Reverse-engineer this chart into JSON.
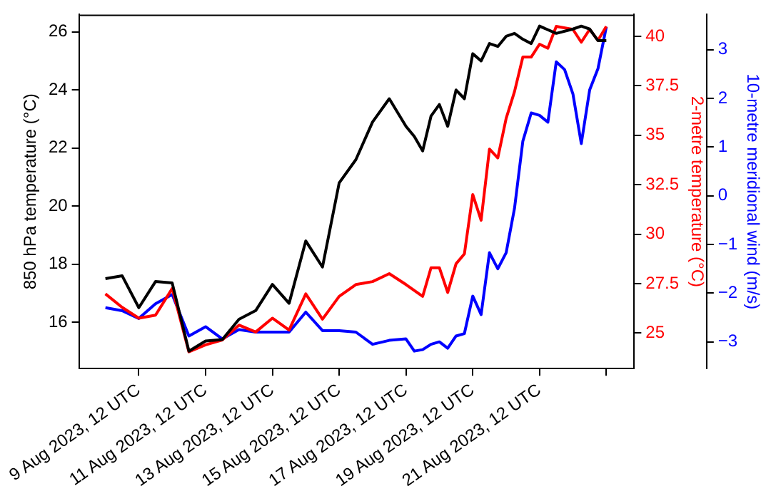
{
  "chart_data": {
    "type": "line",
    "ylabel": "850 hPa temperature (°C)",
    "y2label": "2-metre temperature (°C)",
    "y3label": "10-metre meridional wind (m/s)",
    "xlim": [
      "2023-08-07T17:00",
      "2023-08-24T08:00"
    ],
    "xticks": [
      {
        "value": "2023-08-09T12:00",
        "label": "9 Aug 2023, 12 UTC"
      },
      {
        "value": "2023-08-11T12:00",
        "label": "11 Aug 2023, 12 UTC"
      },
      {
        "value": "2023-08-13T12:00",
        "label": "13 Aug 2023, 12 UTC"
      },
      {
        "value": "2023-08-15T12:00",
        "label": "15 Aug 2023, 12 UTC"
      },
      {
        "value": "2023-08-17T12:00",
        "label": "17 Aug 2023, 12 UTC"
      },
      {
        "value": "2023-08-19T12:00",
        "label": "19 Aug 2023, 12 UTC"
      },
      {
        "value": "2023-08-21T12:00",
        "label": "21 Aug 2023, 12 UTC"
      },
      {
        "value": "2023-08-23T12:00",
        "label": null
      }
    ],
    "ylim": [
      14.4,
      26.6
    ],
    "yticks": [
      16,
      18,
      20,
      22,
      24,
      26
    ],
    "y2lim": [
      23.2,
      41.1
    ],
    "y2ticks": [
      25,
      27.5,
      30,
      32.5,
      35,
      37.5,
      40
    ],
    "y3lim": [
      -3.55,
      3.72
    ],
    "y3ticks": [
      {
        "value": -3,
        "label": "−3"
      },
      {
        "value": -2,
        "label": "−2"
      },
      {
        "value": -1,
        "label": "−1"
      },
      0,
      1,
      2,
      3
    ],
    "grid": false,
    "legend": false,
    "marker": "none",
    "line_style": "solid",
    "series": [
      {
        "color": "#000000",
        "axis": "y",
        "x": [
          "2023-08-08T12:00",
          "2023-08-09T00:00",
          "2023-08-09T12:00",
          "2023-08-10T00:00",
          "2023-08-10T12:00",
          "2023-08-11T00:00",
          "2023-08-11T12:00",
          "2023-08-12T00:00",
          "2023-08-12T12:00",
          "2023-08-13T00:00",
          "2023-08-13T12:00",
          "2023-08-14T00:00",
          "2023-08-14T12:00",
          "2023-08-15T00:00",
          "2023-08-15T12:00",
          "2023-08-16T00:00",
          "2023-08-16T12:00",
          "2023-08-17T00:00",
          "2023-08-17T12:00",
          "2023-08-17T18:00",
          "2023-08-18T00:00",
          "2023-08-18T06:00",
          "2023-08-18T12:00",
          "2023-08-18T18:00",
          "2023-08-19T00:00",
          "2023-08-19T06:00",
          "2023-08-19T12:00",
          "2023-08-19T18:00",
          "2023-08-20T00:00",
          "2023-08-20T06:00",
          "2023-08-20T12:00",
          "2023-08-20T18:00",
          "2023-08-21T00:00",
          "2023-08-21T06:00",
          "2023-08-21T12:00",
          "2023-08-22T00:00",
          "2023-08-22T12:00",
          "2023-08-22T18:00",
          "2023-08-23T00:00",
          "2023-08-23T06:00",
          "2023-08-23T12:00"
        ],
        "values": [
          17.5,
          17.6,
          16.5,
          17.4,
          17.35,
          15.0,
          15.35,
          15.4,
          16.1,
          16.4,
          17.3,
          16.65,
          18.8,
          17.9,
          20.8,
          21.6,
          22.9,
          23.7,
          22.75,
          22.4,
          21.9,
          23.1,
          23.5,
          22.75,
          24.0,
          23.7,
          25.25,
          25.0,
          25.6,
          25.5,
          25.85,
          25.95,
          25.75,
          25.6,
          26.2,
          25.95,
          26.1,
          26.2,
          26.1,
          25.7,
          25.7
        ]
      },
      {
        "color": "#ff0000",
        "axis": "y2",
        "x": [
          "2023-08-08T12:00",
          "2023-08-09T00:00",
          "2023-08-09T12:00",
          "2023-08-10T00:00",
          "2023-08-10T12:00",
          "2023-08-11T00:00",
          "2023-08-11T12:00",
          "2023-08-12T00:00",
          "2023-08-12T12:00",
          "2023-08-13T00:00",
          "2023-08-13T12:00",
          "2023-08-14T00:00",
          "2023-08-14T12:00",
          "2023-08-15T00:00",
          "2023-08-15T12:00",
          "2023-08-16T00:00",
          "2023-08-16T12:00",
          "2023-08-17T00:00",
          "2023-08-17T12:00",
          "2023-08-18T00:00",
          "2023-08-18T06:00",
          "2023-08-18T12:00",
          "2023-08-18T18:00",
          "2023-08-19T00:00",
          "2023-08-19T06:00",
          "2023-08-19T12:00",
          "2023-08-19T18:00",
          "2023-08-20T00:00",
          "2023-08-20T06:00",
          "2023-08-20T12:00",
          "2023-08-20T18:00",
          "2023-08-21T00:00",
          "2023-08-21T06:00",
          "2023-08-21T12:00",
          "2023-08-21T18:00",
          "2023-08-22T00:00",
          "2023-08-22T12:00",
          "2023-08-22T18:00",
          "2023-08-23T00:00",
          "2023-08-23T06:00",
          "2023-08-23T12:00"
        ],
        "values": [
          26.98,
          26.3,
          25.75,
          25.9,
          27.25,
          24.05,
          24.4,
          24.65,
          25.4,
          25.05,
          25.75,
          25.15,
          26.98,
          25.7,
          26.85,
          27.45,
          27.6,
          28.0,
          27.45,
          26.85,
          28.3,
          28.3,
          27.05,
          28.5,
          29.0,
          32.0,
          30.7,
          34.3,
          33.85,
          35.85,
          37.2,
          38.95,
          38.95,
          39.6,
          39.4,
          40.5,
          40.35,
          39.7,
          40.35,
          39.8,
          40.5
        ]
      },
      {
        "color": "#0000ff",
        "axis": "y3",
        "x": [
          "2023-08-08T12:00",
          "2023-08-09T00:00",
          "2023-08-09T12:00",
          "2023-08-10T00:00",
          "2023-08-10T12:00",
          "2023-08-11T00:00",
          "2023-08-11T12:00",
          "2023-08-12T00:00",
          "2023-08-12T12:00",
          "2023-08-13T00:00",
          "2023-08-13T12:00",
          "2023-08-14T00:00",
          "2023-08-14T12:00",
          "2023-08-15T00:00",
          "2023-08-15T12:00",
          "2023-08-16T00:00",
          "2023-08-16T12:00",
          "2023-08-17T00:00",
          "2023-08-17T12:00",
          "2023-08-17T18:00",
          "2023-08-18T00:00",
          "2023-08-18T06:00",
          "2023-08-18T12:00",
          "2023-08-18T18:00",
          "2023-08-19T00:00",
          "2023-08-19T06:00",
          "2023-08-19T12:00",
          "2023-08-19T18:00",
          "2023-08-20T00:00",
          "2023-08-20T06:00",
          "2023-08-20T12:00",
          "2023-08-20T18:00",
          "2023-08-21T00:00",
          "2023-08-21T06:00",
          "2023-08-21T12:00",
          "2023-08-21T18:00",
          "2023-08-22T00:00",
          "2023-08-22T06:00",
          "2023-08-22T12:00",
          "2023-08-22T18:00",
          "2023-08-23T00:00",
          "2023-08-23T06:00",
          "2023-08-23T12:00"
        ],
        "values": [
          -2.3,
          -2.36,
          -2.52,
          -2.22,
          -2.03,
          -2.88,
          -2.69,
          -2.94,
          -2.75,
          -2.8,
          -2.8,
          -2.8,
          -2.39,
          -2.77,
          -2.77,
          -2.8,
          -3.05,
          -2.97,
          -2.94,
          -3.19,
          -3.16,
          -3.05,
          -3.0,
          -3.13,
          -2.88,
          -2.83,
          -2.06,
          -2.44,
          -1.17,
          -1.5,
          -1.17,
          -0.26,
          1.12,
          1.7,
          1.65,
          1.51,
          2.75,
          2.59,
          2.09,
          1.07,
          2.17,
          2.61,
          3.47
        ]
      }
    ]
  }
}
